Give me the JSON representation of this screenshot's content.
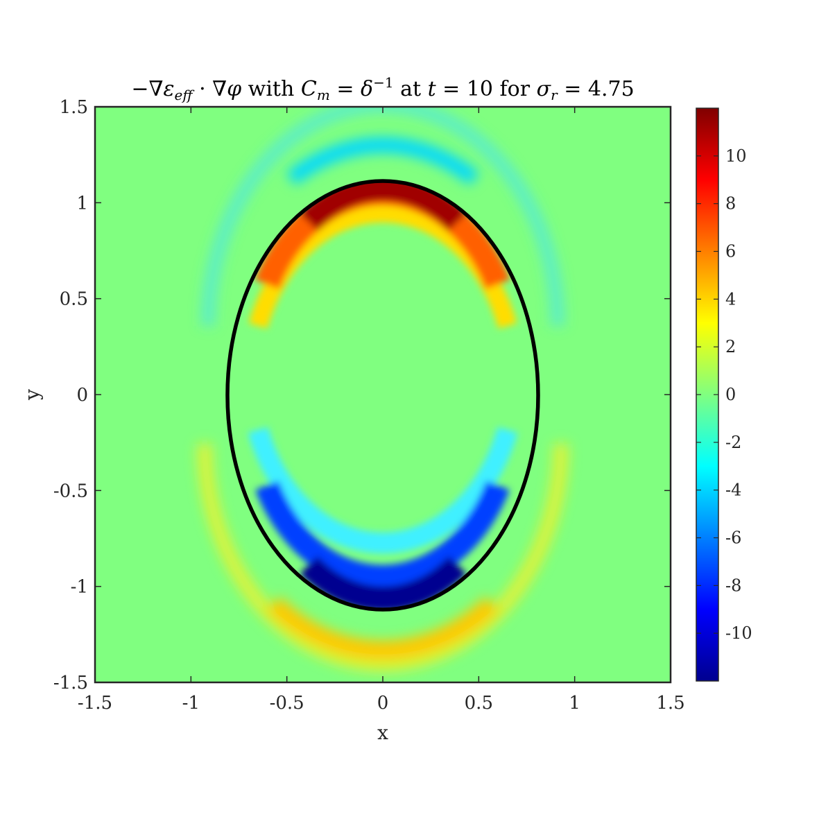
{
  "chart_data": {
    "type": "heatmap",
    "title": "−∇ε_eff · ∇φ with C_m = δ^−1 at t = 10 for σ_r = 4.75",
    "title_parts": {
      "minus": "−",
      "nabla1": "∇",
      "epsilon": "ε",
      "eff": "eff",
      "dot": " · ",
      "nabla2": "∇",
      "phi": "φ",
      "with": " with ",
      "C": "C",
      "m": "m",
      "eq1": " = ",
      "delta": "δ",
      "exp": "−1",
      "at": " at ",
      "t": "t",
      "eq2": " = 10 for ",
      "sigma": "σ",
      "r": "r",
      "eq3": " = 4.75"
    },
    "xlabel": "x",
    "ylabel": "y",
    "xlim": [
      -1.5,
      1.5
    ],
    "ylim": [
      -1.5,
      1.5
    ],
    "x_ticks": [
      -1.5,
      -1,
      -0.5,
      0,
      0.5,
      1,
      1.5
    ],
    "y_ticks": [
      -1.5,
      -1,
      -0.5,
      0,
      0.5,
      1,
      1.5
    ],
    "x_tick_labels": [
      "-1.5",
      "-1",
      "-0.5",
      "0",
      "0.5",
      "1",
      "1.5"
    ],
    "y_tick_labels": [
      "-1.5",
      "-1",
      "-0.5",
      "0",
      "0.5",
      "1",
      "1.5"
    ],
    "colormap": "jet",
    "clim": [
      -12,
      12
    ],
    "colorbar_ticks": [
      -10,
      -8,
      -6,
      -4,
      -2,
      0,
      2,
      4,
      6,
      8,
      10
    ],
    "colorbar_tick_labels": [
      "-10",
      "-8",
      "-6",
      "-4",
      "-2",
      "0",
      "2",
      "4",
      "6",
      "8",
      "10"
    ],
    "grid": false,
    "interface_ellipse": {
      "center": [
        0,
        0
      ],
      "semi_axis_x": 0.81,
      "semi_axis_y": 1.12,
      "color": "#000000"
    },
    "features": [
      {
        "region": "inside top arc",
        "peak_value": 11.5,
        "at": [
          0,
          0.98
        ]
      },
      {
        "region": "outside top arc",
        "peak_value": -3.5,
        "at": [
          0,
          1.2
        ]
      },
      {
        "region": "inside bottom arc",
        "peak_value": -11.5,
        "at": [
          0,
          -0.98
        ]
      },
      {
        "region": "outside bottom arc",
        "peak_value": 3.8,
        "at": [
          0,
          -1.22
        ]
      }
    ]
  }
}
